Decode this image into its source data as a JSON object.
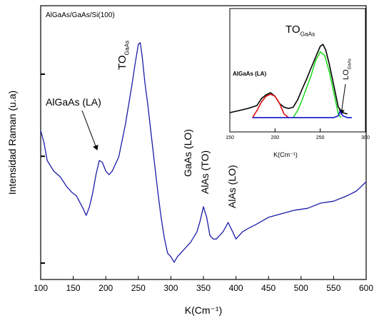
{
  "chart_data": [
    {
      "type": "line",
      "title": "AlGaAs/GaAs/Si(100)",
      "x_label": "K(Cm⁻¹)",
      "y_label": "Intensidad Raman (u.a)",
      "xlim": [
        100,
        600
      ],
      "xticks": [
        100,
        150,
        200,
        250,
        300,
        350,
        400,
        450,
        500,
        550,
        600
      ],
      "ylim": [
        0,
        100
      ],
      "yticks": [
        6,
        45,
        75
      ],
      "annotations": [
        {
          "text": "TO",
          "sub": "GaAs"
        },
        {
          "text": "AlGaAs (LA)"
        },
        {
          "text": "GaAs (LO)"
        },
        {
          "text": "AlAs (TO)"
        },
        {
          "text": "AlAs (LO)"
        }
      ],
      "series": [
        {
          "color": "#1c1ca8",
          "x": [
            100,
            105,
            110,
            120,
            130,
            140,
            148,
            155,
            165,
            170,
            175,
            180,
            185,
            190,
            195,
            200,
            205,
            210,
            220,
            230,
            240,
            245,
            250,
            253,
            256,
            260,
            265,
            270,
            275,
            280,
            285,
            290,
            295,
            300,
            305,
            310,
            315,
            320,
            330,
            340,
            345,
            350,
            355,
            360,
            365,
            370,
            380,
            388,
            395,
            400,
            410,
            420,
            430,
            450,
            470,
            490,
            510,
            530,
            550,
            570,
            585,
            600
          ],
          "values": [
            54.4,
            50,
            43.5,
            39.6,
            37.5,
            33.9,
            31.8,
            30.5,
            26,
            23.4,
            26.6,
            31.8,
            38.3,
            43.5,
            42.7,
            39.6,
            38.3,
            39.6,
            44.8,
            56.5,
            70.8,
            78.6,
            85.9,
            86.5,
            81.3,
            72.1,
            63,
            52.6,
            42.2,
            31.8,
            22.7,
            15.1,
            9.6,
            8.3,
            6.3,
            8.3,
            9.6,
            10.9,
            13.5,
            17.4,
            21.4,
            26.6,
            22.7,
            16.1,
            14.8,
            14.8,
            17.4,
            20.8,
            17.4,
            14.8,
            17.4,
            18.8,
            20,
            22.7,
            24,
            25.3,
            26,
            27.9,
            28.6,
            30.5,
            32.3,
            35.7
          ]
        }
      ]
    },
    {
      "type": "line",
      "x_label": "K(Cm⁻¹)",
      "xlim": [
        150,
        300
      ],
      "xticks": [
        150,
        200,
        250,
        300
      ],
      "ylim": [
        0,
        100
      ],
      "annotations": [
        {
          "text": "TO",
          "sub": "GaAs"
        },
        {
          "text": "AlGaAs (LA)"
        },
        {
          "text": "LO",
          "sub": "GaAs"
        }
      ],
      "series": [
        {
          "color": "#000000",
          "x": [
            150,
            160,
            170,
            180,
            185,
            190,
            195,
            200,
            205,
            210,
            215,
            220,
            225,
            230,
            235,
            240,
            245,
            250,
            253,
            256,
            260,
            265,
            270,
            275,
            280
          ],
          "values": [
            15.6,
            17.3,
            19,
            21.4,
            27,
            30,
            31.8,
            28.9,
            23,
            20,
            19,
            20,
            26,
            34.7,
            43,
            52,
            60.7,
            69.4,
            71,
            66.5,
            55,
            37.6,
            20,
            15.6,
            14.5
          ]
        },
        {
          "color": "#e01010",
          "x": [
            175,
            180,
            185,
            190,
            195,
            200,
            205,
            210,
            215
          ],
          "values": [
            11.6,
            17.3,
            24.3,
            28.9,
            30.6,
            28.9,
            23,
            14.5,
            11.6
          ]
        },
        {
          "color": "#22dd22",
          "x": [
            220,
            225,
            230,
            240,
            245,
            250,
            255,
            260,
            265,
            270,
            273
          ],
          "values": [
            11.6,
            17.3,
            26,
            46,
            57.8,
            65,
            61.8,
            49,
            31.8,
            14.5,
            11.6
          ]
        },
        {
          "color": "#1010cc",
          "x": [
            175,
            265,
            270,
            272,
            275,
            280,
            285
          ],
          "values": [
            11.6,
            11.6,
            13,
            17,
            13,
            11.6,
            11.6
          ]
        }
      ]
    }
  ]
}
